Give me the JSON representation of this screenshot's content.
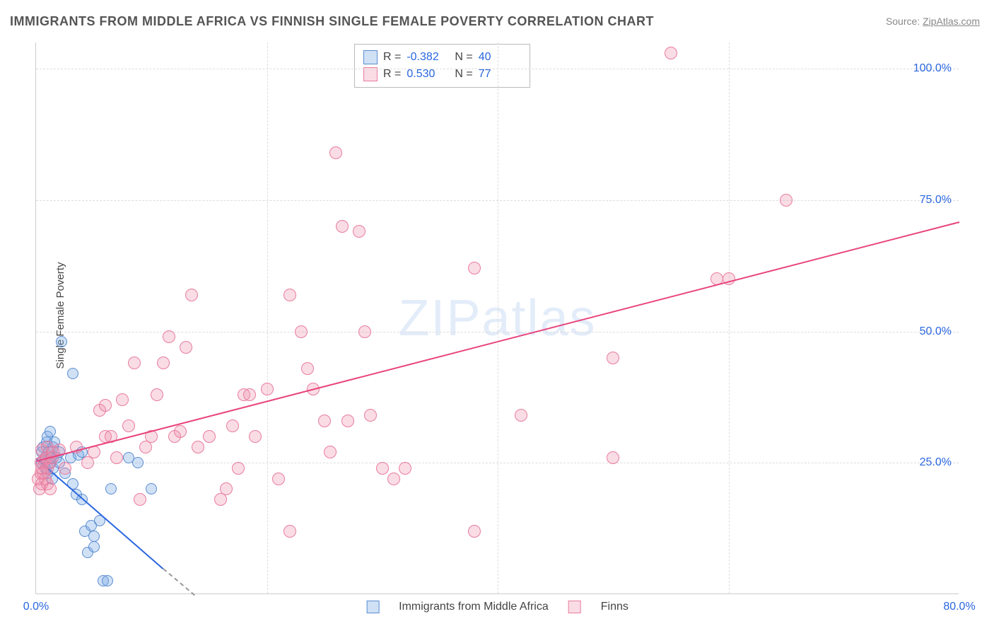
{
  "title": "IMMIGRANTS FROM MIDDLE AFRICA VS FINNISH SINGLE FEMALE POVERTY CORRELATION CHART",
  "source_label": "Source: ",
  "source_link_text": "ZipAtlas.com",
  "watermark": "ZIPatlas",
  "chart": {
    "type": "scatter",
    "ylabel": "Single Female Poverty",
    "background_color": "#ffffff",
    "grid_color": "#dddddd",
    "axis_color": "#cccccc",
    "tick_label_color": "#2966e0",
    "xlim": [
      0,
      80
    ],
    "ylim": [
      0,
      105
    ],
    "xticks": [
      {
        "value": 0,
        "label": "0.0%"
      },
      {
        "value": 20,
        "label": " "
      },
      {
        "value": 40,
        "label": " "
      },
      {
        "value": 60,
        "label": " "
      },
      {
        "value": 80,
        "label": "80.0%"
      }
    ],
    "yticks": [
      {
        "value": 25,
        "label": "25.0%"
      },
      {
        "value": 50,
        "label": "50.0%"
      },
      {
        "value": 75,
        "label": "75.0%"
      },
      {
        "value": 100,
        "label": "100.0%"
      }
    ],
    "series": [
      {
        "name": "Immigrants from Middle Africa",
        "fill_color": "rgba(120,170,230,0.35)",
        "stroke_color": "#5a8cd0",
        "trend_color": "#2966e0",
        "marker_radius": 8,
        "R": "-0.382",
        "N": "40",
        "trend": {
          "x1": 0,
          "y1": 26,
          "x2": 11,
          "y2": 5,
          "extrap_x2": 18,
          "extrap_y2": -8
        },
        "points": [
          [
            0.5,
            25
          ],
          [
            0.5,
            27
          ],
          [
            0.6,
            28
          ],
          [
            0.8,
            24
          ],
          [
            0.8,
            26
          ],
          [
            0.9,
            29
          ],
          [
            1.0,
            23
          ],
          [
            1.0,
            30
          ],
          [
            1.1,
            27
          ],
          [
            1.2,
            25
          ],
          [
            1.2,
            31
          ],
          [
            1.3,
            26
          ],
          [
            1.4,
            22
          ],
          [
            1.5,
            28
          ],
          [
            1.5,
            24
          ],
          [
            1.6,
            29
          ],
          [
            1.8,
            26
          ],
          [
            2.0,
            25
          ],
          [
            2.0,
            27
          ],
          [
            2.2,
            48
          ],
          [
            2.5,
            23
          ],
          [
            3.0,
            26
          ],
          [
            3.2,
            21
          ],
          [
            3.2,
            42
          ],
          [
            3.5,
            19
          ],
          [
            3.7,
            26.5
          ],
          [
            4.0,
            18
          ],
          [
            4.0,
            27
          ],
          [
            4.2,
            12
          ],
          [
            4.5,
            8
          ],
          [
            4.8,
            13
          ],
          [
            5.0,
            9
          ],
          [
            5.0,
            11
          ],
          [
            5.5,
            14
          ],
          [
            5.8,
            2.5
          ],
          [
            6.2,
            2.5
          ],
          [
            6.5,
            20
          ],
          [
            8.0,
            26
          ],
          [
            8.8,
            25
          ],
          [
            10.0,
            20
          ]
        ]
      },
      {
        "name": "Finns",
        "fill_color": "rgba(240,140,170,0.30)",
        "stroke_color": "#e87ca0",
        "trend_color": "#e8447c",
        "marker_radius": 9,
        "R": "0.530",
        "N": "77",
        "trend": {
          "x1": 0,
          "y1": 25.5,
          "x2": 80,
          "y2": 71
        },
        "points": [
          [
            0.2,
            22
          ],
          [
            0.3,
            20
          ],
          [
            0.4,
            23
          ],
          [
            0.4,
            25
          ],
          [
            0.5,
            21
          ],
          [
            0.5,
            24
          ],
          [
            0.5,
            27.5
          ],
          [
            0.6,
            23
          ],
          [
            0.7,
            25.5
          ],
          [
            0.8,
            22
          ],
          [
            0.9,
            26
          ],
          [
            1.0,
            21
          ],
          [
            1.0,
            24
          ],
          [
            1.0,
            28
          ],
          [
            1.2,
            20
          ],
          [
            1.2,
            25
          ],
          [
            1.4,
            26
          ],
          [
            1.5,
            27
          ],
          [
            2.0,
            27.5
          ],
          [
            2.5,
            24
          ],
          [
            3.5,
            28
          ],
          [
            4.5,
            25
          ],
          [
            5.0,
            27
          ],
          [
            5.5,
            35
          ],
          [
            6.0,
            30
          ],
          [
            6.0,
            36
          ],
          [
            6.5,
            30
          ],
          [
            7.0,
            26
          ],
          [
            7.5,
            37
          ],
          [
            8.0,
            32
          ],
          [
            8.5,
            44
          ],
          [
            9.0,
            18
          ],
          [
            9.5,
            28
          ],
          [
            10.0,
            30
          ],
          [
            10.5,
            38
          ],
          [
            11.0,
            44
          ],
          [
            11.5,
            49
          ],
          [
            12.0,
            30
          ],
          [
            12.5,
            31
          ],
          [
            13.0,
            47
          ],
          [
            13.5,
            57
          ],
          [
            14.0,
            28
          ],
          [
            15.0,
            30
          ],
          [
            16.0,
            18
          ],
          [
            16.5,
            20
          ],
          [
            17.0,
            32
          ],
          [
            17.5,
            24
          ],
          [
            18.0,
            38
          ],
          [
            18.5,
            38
          ],
          [
            19.0,
            30
          ],
          [
            20.0,
            39
          ],
          [
            21.0,
            22
          ],
          [
            22.0,
            57
          ],
          [
            22.0,
            12
          ],
          [
            23.0,
            50
          ],
          [
            23.5,
            43
          ],
          [
            24.0,
            39
          ],
          [
            25.0,
            33
          ],
          [
            25.5,
            27
          ],
          [
            26.0,
            84
          ],
          [
            26.5,
            70
          ],
          [
            27.0,
            33
          ],
          [
            28.0,
            69
          ],
          [
            28.5,
            50
          ],
          [
            29.0,
            34
          ],
          [
            30.0,
            24
          ],
          [
            31.0,
            22
          ],
          [
            32.0,
            24
          ],
          [
            38.0,
            12
          ],
          [
            38.0,
            62
          ],
          [
            42.0,
            34
          ],
          [
            50.0,
            26
          ],
          [
            50.0,
            45
          ],
          [
            55.0,
            103
          ],
          [
            59.0,
            60
          ],
          [
            60.0,
            60
          ],
          [
            65.0,
            75
          ]
        ]
      }
    ],
    "legend_top_labels": {
      "R": "R =",
      "N": "N ="
    },
    "legend_bottom": [
      {
        "series": 0
      },
      {
        "series": 1
      }
    ]
  }
}
